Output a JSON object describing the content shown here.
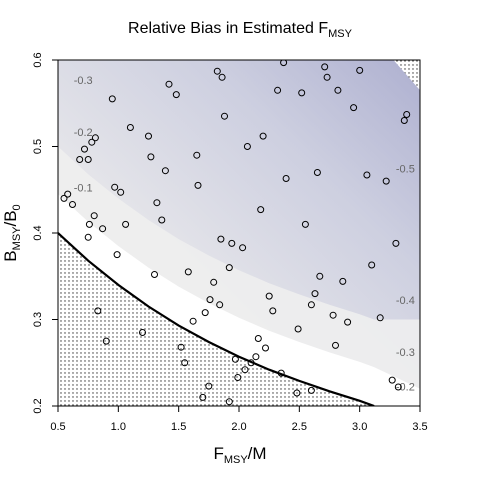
{
  "chart_data": {
    "type": "scatter",
    "title": {
      "main": "Relative Bias in Estimated F",
      "sub": "MSY"
    },
    "xlabel": {
      "base": "F",
      "sub": "MSY",
      "rest": "/M"
    },
    "ylabel": {
      "base": "B",
      "sub": "MSY",
      "mid": "/B",
      "sub2": "0"
    },
    "xlim": [
      0.5,
      3.5
    ],
    "ylim": [
      0.2,
      0.6
    ],
    "xticks": [
      {
        "value": 0.5,
        "label": "0.5"
      },
      {
        "value": 1.0,
        "label": "1.0"
      },
      {
        "value": 1.5,
        "label": "1.5"
      },
      {
        "value": 2.0,
        "label": "2.0"
      },
      {
        "value": 2.5,
        "label": "2.5"
      },
      {
        "value": 3.0,
        "label": "3.0"
      },
      {
        "value": 3.5,
        "label": "3.5"
      }
    ],
    "yticks": [
      {
        "value": 0.2,
        "label": "0.2"
      },
      {
        "value": 0.3,
        "label": "0.3"
      },
      {
        "value": 0.4,
        "label": "0.4"
      },
      {
        "value": 0.5,
        "label": "0.5"
      },
      {
        "value": 0.6,
        "label": "0.6"
      }
    ],
    "contour_labels": [
      {
        "text": "-0.3",
        "x": 0.63,
        "y": 0.572
      },
      {
        "text": "-0.2",
        "x": 0.63,
        "y": 0.512
      },
      {
        "text": "-0.1",
        "x": 0.63,
        "y": 0.448
      },
      {
        "text": "-0.5",
        "x": 3.3,
        "y": 0.47
      },
      {
        "text": "-0.4",
        "x": 3.3,
        "y": 0.318
      },
      {
        "text": "-0.3",
        "x": 3.3,
        "y": 0.258
      },
      {
        "text": "-0.2",
        "x": 3.3,
        "y": 0.218
      }
    ],
    "boundary_curve": [
      [
        0.5,
        0.4
      ],
      [
        0.75,
        0.368
      ],
      [
        1.0,
        0.34
      ],
      [
        1.25,
        0.315
      ],
      [
        1.5,
        0.293
      ],
      [
        1.75,
        0.274
      ],
      [
        2.0,
        0.257
      ],
      [
        2.25,
        0.242
      ],
      [
        2.5,
        0.229
      ],
      [
        2.75,
        0.217
      ],
      [
        3.0,
        0.206
      ],
      [
        3.12,
        0.2
      ]
    ],
    "points": [
      [
        0.55,
        0.44
      ],
      [
        0.58,
        0.445
      ],
      [
        0.62,
        0.433
      ],
      [
        0.68,
        0.485
      ],
      [
        0.72,
        0.497
      ],
      [
        0.75,
        0.485
      ],
      [
        0.78,
        0.505
      ],
      [
        0.81,
        0.51
      ],
      [
        0.76,
        0.41
      ],
      [
        0.8,
        0.42
      ],
      [
        0.75,
        0.395
      ],
      [
        0.87,
        0.405
      ],
      [
        0.95,
        0.555
      ],
      [
        0.97,
        0.453
      ],
      [
        1.02,
        0.447
      ],
      [
        1.06,
        0.41
      ],
      [
        0.99,
        0.375
      ],
      [
        0.83,
        0.31
      ],
      [
        0.9,
        0.275
      ],
      [
        1.1,
        0.522
      ],
      [
        1.25,
        0.512
      ],
      [
        1.27,
        0.488
      ],
      [
        1.32,
        0.435
      ],
      [
        1.36,
        0.415
      ],
      [
        1.39,
        0.472
      ],
      [
        1.42,
        0.572
      ],
      [
        1.48,
        0.56
      ],
      [
        1.3,
        0.352
      ],
      [
        1.2,
        0.285
      ],
      [
        1.52,
        0.268
      ],
      [
        1.55,
        0.25
      ],
      [
        1.58,
        0.355
      ],
      [
        1.62,
        0.298
      ],
      [
        1.65,
        0.49
      ],
      [
        1.66,
        0.455
      ],
      [
        1.72,
        0.308
      ],
      [
        1.76,
        0.323
      ],
      [
        1.79,
        0.343
      ],
      [
        1.82,
        0.587
      ],
      [
        1.84,
        0.317
      ],
      [
        1.85,
        0.393
      ],
      [
        1.86,
        0.58
      ],
      [
        1.88,
        0.535
      ],
      [
        1.92,
        0.36
      ],
      [
        1.94,
        0.388
      ],
      [
        1.97,
        0.254
      ],
      [
        1.99,
        0.233
      ],
      [
        2.03,
        0.383
      ],
      [
        2.07,
        0.5
      ],
      [
        2.1,
        0.25
      ],
      [
        2.14,
        0.257
      ],
      [
        2.16,
        0.278
      ],
      [
        2.18,
        0.427
      ],
      [
        2.2,
        0.512
      ],
      [
        2.22,
        0.267
      ],
      [
        2.25,
        0.327
      ],
      [
        2.28,
        0.31
      ],
      [
        2.32,
        0.565
      ],
      [
        2.37,
        0.597
      ],
      [
        2.39,
        0.463
      ],
      [
        2.49,
        0.289
      ],
      [
        2.52,
        0.562
      ],
      [
        2.55,
        0.41
      ],
      [
        2.6,
        0.317
      ],
      [
        2.63,
        0.33
      ],
      [
        2.65,
        0.47
      ],
      [
        2.67,
        0.35
      ],
      [
        2.71,
        0.592
      ],
      [
        2.73,
        0.58
      ],
      [
        2.78,
        0.305
      ],
      [
        2.82,
        0.565
      ],
      [
        2.86,
        0.344
      ],
      [
        2.9,
        0.297
      ],
      [
        2.95,
        0.545
      ],
      [
        3.0,
        0.588
      ],
      [
        3.06,
        0.467
      ],
      [
        3.1,
        0.363
      ],
      [
        3.17,
        0.302
      ],
      [
        3.22,
        0.46
      ],
      [
        3.27,
        0.23
      ],
      [
        3.3,
        0.388
      ],
      [
        3.32,
        0.222
      ],
      [
        3.37,
        0.53
      ],
      [
        3.39,
        0.537
      ],
      [
        2.8,
        0.27
      ],
      [
        2.6,
        0.218
      ],
      [
        2.48,
        0.215
      ],
      [
        2.35,
        0.238
      ],
      [
        1.7,
        0.21
      ],
      [
        1.92,
        0.205
      ],
      [
        1.75,
        0.223
      ],
      [
        2.05,
        0.242
      ]
    ]
  }
}
